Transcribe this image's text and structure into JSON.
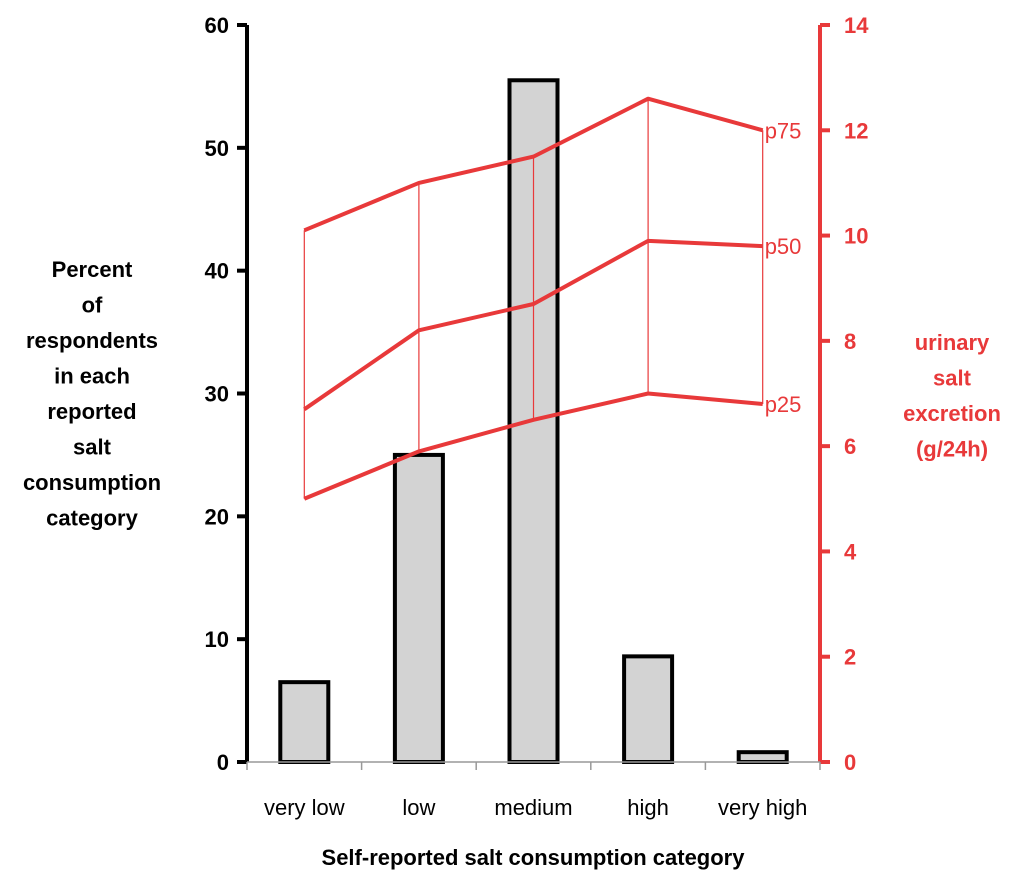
{
  "chart_data": {
    "type": "bar",
    "categories": [
      "very low",
      "low",
      "medium",
      "high",
      "very high"
    ],
    "xlabel": "Self-reported salt consumption category",
    "ylabel_left": [
      "Percent",
      "of",
      "respondents",
      "in each",
      "reported",
      "salt",
      "consumption",
      "category"
    ],
    "ylabel_right": [
      "urinary",
      "salt",
      "excretion",
      "(g/24h)"
    ],
    "ylim_left": [
      0,
      60
    ],
    "yticks_left": [
      0,
      10,
      20,
      30,
      40,
      50,
      60
    ],
    "ylim_right": [
      0,
      14
    ],
    "yticks_right": [
      0,
      2,
      4,
      6,
      8,
      10,
      12,
      14
    ],
    "bars": {
      "axis": "left",
      "values": [
        6.5,
        25,
        55.5,
        8.6,
        0.8
      ],
      "fill": "#d3d3d3",
      "stroke": "#000000"
    },
    "series": [
      {
        "name": "p75",
        "axis": "right",
        "values": [
          10.1,
          11.0,
          11.5,
          12.6,
          12.0
        ]
      },
      {
        "name": "p50",
        "axis": "right",
        "values": [
          6.7,
          8.2,
          8.7,
          9.9,
          9.8
        ]
      },
      {
        "name": "p25",
        "axis": "right",
        "values": [
          5.0,
          5.9,
          6.5,
          7.0,
          6.8
        ]
      }
    ],
    "line_color": "#e8393a",
    "left_axis_color": "#000000",
    "right_axis_color": "#e8393a",
    "grid": false
  }
}
